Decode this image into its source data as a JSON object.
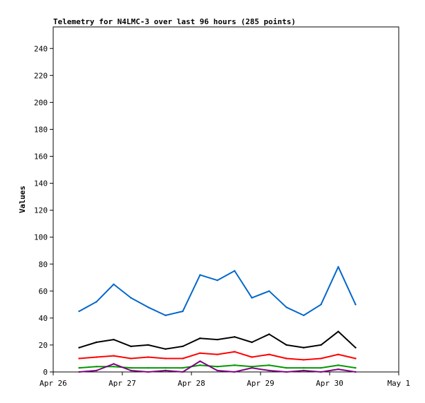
{
  "chart_data": {
    "type": "line",
    "title": "Telemetry for N4LMC-3 over last 96 hours (285 points)",
    "xlabel": "",
    "ylabel": "Values",
    "xlim": [
      "2026-04-26T00:00",
      "2026-05-01T00:00"
    ],
    "ylim": [
      0,
      256
    ],
    "x_ticks": [
      "Apr 26",
      "Apr 27",
      "Apr 28",
      "Apr 29",
      "Apr 30",
      "May 1"
    ],
    "y_ticks": [
      0,
      20,
      40,
      60,
      80,
      100,
      120,
      140,
      160,
      180,
      200,
      220,
      240
    ],
    "grid": false,
    "legend": "none",
    "series": [
      {
        "color": "#0066cc",
        "x": [
          "2026-04-26T09:00",
          "2026-04-26T15:00",
          "2026-04-26T21:00",
          "2026-04-27T03:00",
          "2026-04-27T09:00",
          "2026-04-27T15:00",
          "2026-04-27T21:00",
          "2026-04-28T03:00",
          "2026-04-28T09:00",
          "2026-04-28T15:00",
          "2026-04-28T21:00",
          "2026-04-29T03:00",
          "2026-04-29T09:00",
          "2026-04-29T15:00",
          "2026-04-29T21:00",
          "2026-04-30T03:00",
          "2026-04-30T09:00"
        ],
        "y": [
          45,
          52,
          65,
          55,
          48,
          42,
          45,
          72,
          68,
          75,
          55,
          60,
          48,
          42,
          50,
          78,
          50
        ]
      },
      {
        "color": "#000000",
        "x": [
          "2026-04-26T09:00",
          "2026-04-26T15:00",
          "2026-04-26T21:00",
          "2026-04-27T03:00",
          "2026-04-27T09:00",
          "2026-04-27T15:00",
          "2026-04-27T21:00",
          "2026-04-28T03:00",
          "2026-04-28T09:00",
          "2026-04-28T15:00",
          "2026-04-28T21:00",
          "2026-04-29T03:00",
          "2026-04-29T09:00",
          "2026-04-29T15:00",
          "2026-04-29T21:00",
          "2026-04-30T03:00",
          "2026-04-30T09:00"
        ],
        "y": [
          18,
          22,
          24,
          19,
          20,
          17,
          19,
          25,
          24,
          26,
          22,
          28,
          20,
          18,
          20,
          30,
          18
        ]
      },
      {
        "color": "#ff0000",
        "x": [
          "2026-04-26T09:00",
          "2026-04-26T15:00",
          "2026-04-26T21:00",
          "2026-04-27T03:00",
          "2026-04-27T09:00",
          "2026-04-27T15:00",
          "2026-04-27T21:00",
          "2026-04-28T03:00",
          "2026-04-28T09:00",
          "2026-04-28T15:00",
          "2026-04-28T21:00",
          "2026-04-29T03:00",
          "2026-04-29T09:00",
          "2026-04-29T15:00",
          "2026-04-29T21:00",
          "2026-04-30T03:00",
          "2026-04-30T09:00"
        ],
        "y": [
          10,
          11,
          12,
          10,
          11,
          10,
          10,
          14,
          13,
          15,
          11,
          13,
          10,
          9,
          10,
          13,
          10
        ]
      },
      {
        "color": "#009900",
        "x": [
          "2026-04-26T09:00",
          "2026-04-26T15:00",
          "2026-04-26T21:00",
          "2026-04-27T03:00",
          "2026-04-27T09:00",
          "2026-04-27T15:00",
          "2026-04-27T21:00",
          "2026-04-28T03:00",
          "2026-04-28T09:00",
          "2026-04-28T15:00",
          "2026-04-28T21:00",
          "2026-04-29T03:00",
          "2026-04-29T09:00",
          "2026-04-29T15:00",
          "2026-04-29T21:00",
          "2026-04-30T03:00",
          "2026-04-30T09:00"
        ],
        "y": [
          3,
          4,
          4,
          3,
          3,
          3,
          3,
          5,
          4,
          5,
          4,
          5,
          3,
          3,
          3,
          5,
          3
        ]
      },
      {
        "color": "#800080",
        "x": [
          "2026-04-26T09:00",
          "2026-04-26T15:00",
          "2026-04-26T21:00",
          "2026-04-27T03:00",
          "2026-04-27T09:00",
          "2026-04-27T15:00",
          "2026-04-27T21:00",
          "2026-04-28T03:00",
          "2026-04-28T09:00",
          "2026-04-28T15:00",
          "2026-04-28T21:00",
          "2026-04-29T03:00",
          "2026-04-29T09:00",
          "2026-04-29T15:00",
          "2026-04-29T21:00",
          "2026-04-30T03:00",
          "2026-04-30T09:00"
        ],
        "y": [
          0,
          1,
          6,
          1,
          0,
          1,
          0,
          8,
          1,
          0,
          3,
          1,
          0,
          1,
          0,
          2,
          0
        ]
      }
    ]
  }
}
